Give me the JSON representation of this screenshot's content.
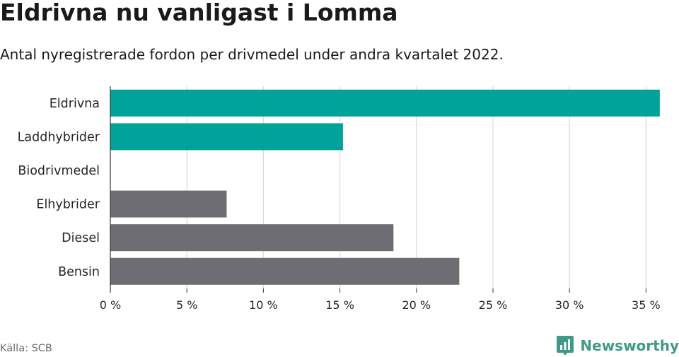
{
  "header": {
    "title": "Eldrivna nu vanligast i Lomma",
    "subtitle": "Antal nyregistrerade fordon per drivmedel under andra kvartalet 2022."
  },
  "footer": {
    "source": "Källa: SCB",
    "brand": "Newsworthy",
    "brand_icon": "newsworthy-logo-icon"
  },
  "colors": {
    "highlight": "#00a398",
    "other": "#6e6d73",
    "grid": "#d9d9d9",
    "brand": "#3f9b88"
  },
  "chart_data": {
    "type": "bar",
    "orientation": "horizontal",
    "categories": [
      "Eldrivna",
      "Laddhybrider",
      "Biodrivmedel",
      "Elhybrider",
      "Diesel",
      "Bensin"
    ],
    "values": [
      35.9,
      15.2,
      0,
      7.6,
      18.5,
      22.8
    ],
    "highlighted": [
      "Eldrivna",
      "Laddhybrider"
    ],
    "xlim": [
      0,
      36
    ],
    "x_ticks": [
      0,
      5,
      10,
      15,
      20,
      25,
      30,
      35
    ],
    "x_tick_labels": [
      "0 %",
      "5 %",
      "10 %",
      "15 %",
      "20 %",
      "25 %",
      "30 %",
      "35 %"
    ],
    "grid": true,
    "legend": "none"
  }
}
